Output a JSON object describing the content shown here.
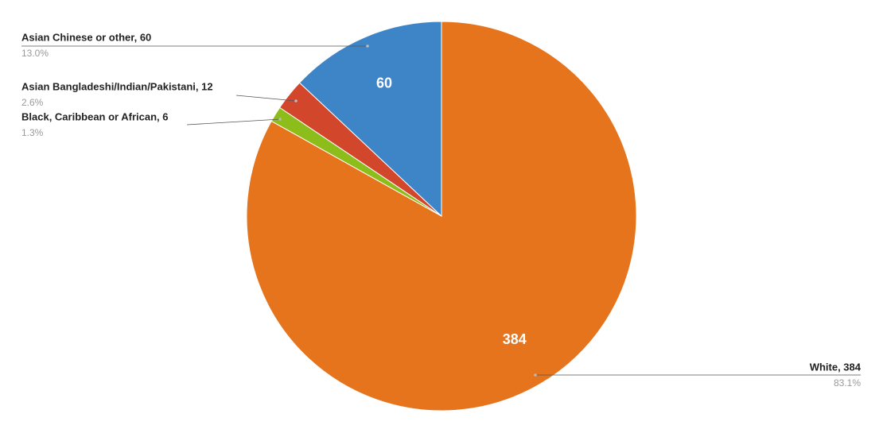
{
  "chart_data": {
    "type": "pie",
    "labels": [
      "White, 384",
      "Black, Caribbean or African, 6",
      "Asian Bangladeshi/Indian/Pakistani, 12",
      "Asian Chinese or other, 60"
    ],
    "values": [
      384,
      6,
      12,
      60
    ],
    "percent_labels": [
      "83.1%",
      "1.3%",
      "2.6%",
      "13.0%"
    ],
    "colors": [
      "#e6741c",
      "#8dbd1b",
      "#d2462b",
      "#3d85c6"
    ]
  }
}
